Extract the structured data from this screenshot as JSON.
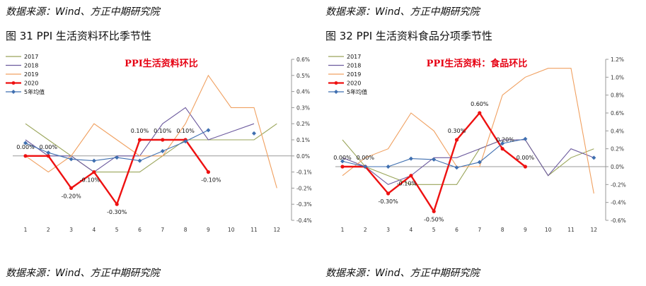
{
  "source_top_left": "数据来源：Wind、方正中期研究院",
  "source_top_right": "数据来源：Wind、方正中期研究院",
  "source_bottom_left": "数据来源：Wind、方正中期研究院",
  "source_bottom_right": "数据来源：Wind、方正中期研究院",
  "figure_left": "图  31   PPI 生活资料环比季节性",
  "figure_right": "图  32   PPI 生活资料食品分项季节性",
  "colors": {
    "s2017": "#9aa55a",
    "s2018": "#6c5a9e",
    "s2019": "#f0a060",
    "s2020": "#ee1111",
    "avg": "#3f6fb0",
    "axis": "#999999"
  },
  "chart_data": [
    {
      "type": "line",
      "title": "PPI生活资料环比",
      "categories": [
        "1",
        "2",
        "3",
        "4",
        "5",
        "6",
        "7",
        "8",
        "9",
        "10",
        "11",
        "12"
      ],
      "ylim": [
        -0.4,
        0.6
      ],
      "yticks": [
        -0.4,
        -0.3,
        -0.2,
        -0.1,
        0,
        0.1,
        0.2,
        0.3,
        0.4,
        0.5,
        0.6
      ],
      "ytick_labels": [
        "-0.4%",
        "-0.3%",
        "-0.2%",
        "-0.1%",
        "0.0%",
        "0.1%",
        "0.2%",
        "0.3%",
        "0.4%",
        "0.5%",
        "0.6%"
      ],
      "legend_position": "top-left",
      "series": [
        {
          "name": "2017",
          "color": "#9aa55a",
          "values": [
            0.2,
            0.1,
            0.0,
            -0.1,
            -0.1,
            -0.1,
            0.0,
            0.1,
            0.1,
            0.1,
            0.1,
            0.2
          ]
        },
        {
          "name": "2018",
          "color": "#6c5a9e",
          "values": [
            0.1,
            0.0,
            0.0,
            -0.1,
            0.0,
            0.0,
            0.2,
            0.3,
            0.1,
            0.15,
            0.2,
            null
          ]
        },
        {
          "name": "2019",
          "color": "#f0a060",
          "values": [
            0.0,
            -0.1,
            0.0,
            0.2,
            0.1,
            0.0,
            0.0,
            0.2,
            0.5,
            0.3,
            0.3,
            -0.2
          ]
        },
        {
          "name": "2020",
          "color": "#ee1111",
          "marker": "dot",
          "values": [
            0.0,
            0.0,
            -0.2,
            -0.1,
            -0.3,
            0.1,
            0.1,
            0.1,
            -0.1,
            null,
            null,
            null
          ]
        },
        {
          "name": "5年均值",
          "color": "#3f6fb0",
          "marker": "diamond",
          "values": [
            0.08,
            0.02,
            -0.02,
            -0.03,
            -0.01,
            -0.03,
            0.03,
            0.09,
            0.16,
            null,
            0.14,
            null
          ]
        }
      ],
      "data_labels": [
        {
          "x": "1",
          "y": 0.0,
          "text": "0.00%"
        },
        {
          "x": "2",
          "y": 0.0,
          "text": "0.00%"
        },
        {
          "x": "3",
          "y": -0.2,
          "text": "-0.20%"
        },
        {
          "x": "4",
          "y": -0.1,
          "text": "-0.10%"
        },
        {
          "x": "5",
          "y": -0.3,
          "text": "-0.30%"
        },
        {
          "x": "6",
          "y": 0.1,
          "text": "0.10%"
        },
        {
          "x": "7",
          "y": 0.1,
          "text": "0.10%"
        },
        {
          "x": "8",
          "y": 0.1,
          "text": "0.10%"
        },
        {
          "x": "9",
          "y": -0.1,
          "text": "-0.10%"
        }
      ]
    },
    {
      "type": "line",
      "title": "PPI生活资料：食品环比",
      "categories": [
        "1",
        "2",
        "3",
        "4",
        "5",
        "6",
        "7",
        "8",
        "9",
        "10",
        "11",
        "12"
      ],
      "ylim": [
        -0.6,
        1.2
      ],
      "yticks": [
        -0.6,
        -0.4,
        -0.2,
        0,
        0.2,
        0.4,
        0.6,
        0.8,
        1.0,
        1.2
      ],
      "ytick_labels": [
        "-0.6%",
        "-0.4%",
        "-0.2%",
        "0.0%",
        "0.2%",
        "0.4%",
        "0.6%",
        "0.8%",
        "1.0%",
        "1.2%"
      ],
      "legend_position": "top-left",
      "series": [
        {
          "name": "2017",
          "color": "#9aa55a",
          "values": [
            0.3,
            0.0,
            -0.1,
            -0.2,
            -0.2,
            -0.2,
            0.2,
            0.3,
            0.3,
            -0.1,
            0.1,
            0.2
          ]
        },
        {
          "name": "2018",
          "color": "#6c5a9e",
          "values": [
            0.1,
            0.0,
            -0.2,
            -0.1,
            0.1,
            0.1,
            0.2,
            0.3,
            0.3,
            -0.1,
            0.2,
            0.1
          ]
        },
        {
          "name": "2019",
          "color": "#f0a060",
          "values": [
            -0.1,
            0.1,
            0.2,
            0.6,
            0.4,
            0.0,
            0.0,
            0.8,
            1.0,
            1.1,
            1.1,
            -0.3
          ]
        },
        {
          "name": "2020",
          "color": "#ee1111",
          "marker": "dot",
          "values": [
            0.0,
            0.0,
            -0.3,
            -0.1,
            -0.5,
            0.3,
            0.6,
            0.2,
            0.0,
            null,
            null,
            null
          ]
        },
        {
          "name": "5年均值",
          "color": "#3f6fb0",
          "marker": "diamond",
          "values": [
            0.06,
            0.0,
            0.0,
            0.09,
            0.08,
            -0.01,
            0.05,
            0.26,
            0.31,
            null,
            null,
            0.1
          ]
        }
      ],
      "data_labels": [
        {
          "x": "1",
          "y": 0.0,
          "text": "0.00%"
        },
        {
          "x": "2",
          "y": 0.0,
          "text": "0.00%"
        },
        {
          "x": "3",
          "y": -0.3,
          "text": "-0.30%"
        },
        {
          "x": "4",
          "y": -0.1,
          "text": "-0.10%"
        },
        {
          "x": "5",
          "y": -0.5,
          "text": "-0.50%"
        },
        {
          "x": "6",
          "y": 0.3,
          "text": "0.30%"
        },
        {
          "x": "7",
          "y": 0.6,
          "text": "0.60%"
        },
        {
          "x": "8",
          "y": 0.2,
          "text": "0.20%"
        },
        {
          "x": "9",
          "y": 0.0,
          "text": "0.00%"
        }
      ]
    }
  ]
}
